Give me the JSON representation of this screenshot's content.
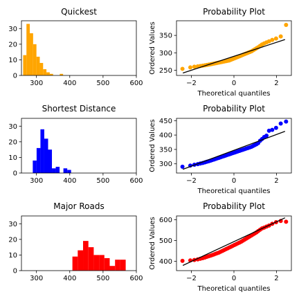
{
  "chart_data": [
    {
      "type": "bar",
      "title": "Quickest",
      "xlabel": "",
      "ylabel": "",
      "xlim": [
        255,
        600
      ],
      "ylim": [
        0,
        35
      ],
      "xticks": [
        300,
        400,
        500,
        600
      ],
      "yticks": [
        0,
        10,
        20,
        30
      ],
      "bin_start": 260,
      "bin_width": 10,
      "values": [
        13,
        33,
        27,
        20,
        12,
        8,
        4,
        2,
        1,
        0,
        0,
        1
      ],
      "color": "#ffa500"
    },
    {
      "type": "scatter",
      "title": "Probability Plot",
      "xlabel": "Theoretical quantiles",
      "ylabel": "Ordered Values",
      "xlim": [
        -2.7,
        2.7
      ],
      "ylim": [
        235,
        392
      ],
      "xticks": [
        -2,
        0,
        2
      ],
      "yticks": [
        250,
        300,
        350
      ],
      "fit_line": [
        [
          -2.4,
          242
        ],
        [
          2.4,
          338
        ]
      ],
      "x": [
        -2.42,
        -2.05,
        -1.86,
        -1.7,
        -1.58,
        -1.47,
        -1.37,
        -1.28,
        -1.19,
        -1.1,
        -1.02,
        -0.94,
        -0.86,
        -0.78,
        -0.7,
        -0.62,
        -0.54,
        -0.46,
        -0.38,
        -0.3,
        -0.22,
        -0.14,
        -0.06,
        0.02,
        0.1,
        0.18,
        0.26,
        0.34,
        0.42,
        0.5,
        0.58,
        0.66,
        0.74,
        0.82,
        0.9,
        0.98,
        1.06,
        1.14,
        1.23,
        1.32,
        1.42,
        1.53,
        1.65,
        1.8,
        1.98,
        2.2,
        2.45
      ],
      "y": [
        254,
        258,
        260,
        261,
        262,
        263,
        264,
        265,
        266,
        267,
        268,
        269,
        270,
        271,
        272,
        273,
        274,
        275,
        276,
        277,
        278,
        280,
        282,
        284,
        286,
        288,
        290,
        292,
        294,
        296,
        298,
        300,
        302,
        304,
        307,
        310,
        313,
        316,
        320,
        324,
        327,
        330,
        333,
        337,
        341,
        347,
        380
      ],
      "color": "#ffa500"
    },
    {
      "type": "bar",
      "title": "Shortest Distance",
      "xlabel": "",
      "ylabel": "",
      "xlim": [
        255,
        600
      ],
      "ylim": [
        0,
        35
      ],
      "xticks": [
        300,
        400,
        500,
        600
      ],
      "yticks": [
        0,
        10,
        20,
        30
      ],
      "bin_start": 289,
      "bin_width": 11.5,
      "values": [
        8,
        16,
        28,
        22,
        15,
        3,
        4,
        0,
        3,
        2
      ],
      "color": "#0000ff"
    },
    {
      "type": "scatter",
      "title": "Probability Plot",
      "xlabel": "Theoretical quantiles",
      "ylabel": "Ordered Values",
      "xlim": [
        -2.7,
        2.7
      ],
      "ylim": [
        268,
        458
      ],
      "xticks": [
        -2,
        0,
        2
      ],
      "yticks": [
        300,
        350,
        400,
        450
      ],
      "fit_line": [
        [
          -2.4,
          281
        ],
        [
          2.4,
          413
        ]
      ],
      "x": [
        -2.42,
        -2.05,
        -1.86,
        -1.7,
        -1.58,
        -1.47,
        -1.37,
        -1.28,
        -1.19,
        -1.1,
        -1.02,
        -0.94,
        -0.86,
        -0.78,
        -0.7,
        -0.62,
        -0.54,
        -0.46,
        -0.38,
        -0.3,
        -0.22,
        -0.14,
        -0.06,
        0.02,
        0.1,
        0.18,
        0.26,
        0.34,
        0.42,
        0.5,
        0.58,
        0.66,
        0.74,
        0.82,
        0.9,
        0.98,
        1.06,
        1.14,
        1.23,
        1.32,
        1.42,
        1.53,
        1.65,
        1.8,
        1.98,
        2.2,
        2.45
      ],
      "y": [
        290,
        294,
        297,
        299,
        301,
        303,
        305,
        307,
        309,
        311,
        313,
        315,
        317,
        319,
        321,
        323,
        325,
        327,
        329,
        331,
        333,
        335,
        337,
        339,
        341,
        343,
        345,
        347,
        349,
        351,
        353,
        355,
        357,
        359,
        362,
        365,
        368,
        372,
        380,
        386,
        393,
        398,
        415,
        418,
        425,
        440,
        447
      ],
      "color": "#0000ff"
    },
    {
      "type": "bar",
      "title": "Major Roads",
      "xlabel": "",
      "ylabel": "",
      "xlim": [
        255,
        600
      ],
      "ylim": [
        0,
        35
      ],
      "xticks": [
        300,
        400,
        500,
        600
      ],
      "yticks": [
        0,
        10,
        20,
        30
      ],
      "bin_start": 408,
      "bin_width": 16,
      "values": [
        9,
        13,
        19,
        15,
        10,
        10,
        8,
        3,
        7,
        7
      ],
      "color": "#ff0000"
    },
    {
      "type": "scatter",
      "title": "Probability Plot",
      "xlabel": "Theoretical quantiles",
      "ylabel": "Ordered Values",
      "xlim": [
        -2.7,
        2.7
      ],
      "ylim": [
        355,
        618
      ],
      "xticks": [
        -2,
        0,
        2
      ],
      "yticks": [
        400,
        500,
        600
      ],
      "fit_line": [
        [
          -2.4,
          380
        ],
        [
          2.4,
          609
        ]
      ],
      "x": [
        -2.42,
        -2.05,
        -1.86,
        -1.7,
        -1.58,
        -1.47,
        -1.37,
        -1.28,
        -1.19,
        -1.1,
        -1.02,
        -0.94,
        -0.86,
        -0.78,
        -0.7,
        -0.62,
        -0.54,
        -0.46,
        -0.38,
        -0.3,
        -0.22,
        -0.14,
        -0.06,
        0.02,
        0.1,
        0.18,
        0.26,
        0.34,
        0.42,
        0.5,
        0.58,
        0.66,
        0.74,
        0.82,
        0.9,
        0.98,
        1.06,
        1.14,
        1.23,
        1.32,
        1.42,
        1.53,
        1.65,
        1.8,
        1.98,
        2.2,
        2.45
      ],
      "y": [
        402,
        404,
        406,
        409,
        412,
        415,
        418,
        421,
        424,
        427,
        430,
        433,
        436,
        439,
        442,
        446,
        450,
        454,
        458,
        462,
        466,
        470,
        474,
        478,
        482,
        486,
        490,
        494,
        499,
        504,
        509,
        514,
        519,
        524,
        529,
        534,
        539,
        545,
        552,
        558,
        562,
        567,
        572,
        580,
        588,
        594,
        590
      ],
      "color": "#ff0000"
    }
  ]
}
